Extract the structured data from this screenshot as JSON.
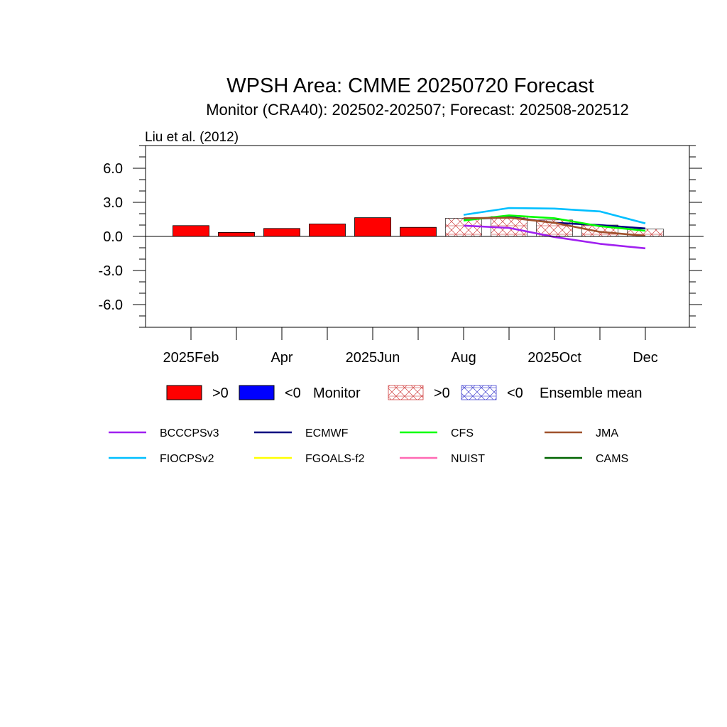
{
  "chart_data": {
    "type": "bar",
    "title": "WPSH Area: CMME 20250720 Forecast",
    "subtitle": "Monitor (CRA40): 202502-202507; Forecast: 202508-202512",
    "annotation": "Liu et al. (2012)",
    "ylim": [
      -8,
      8
    ],
    "y_ticks": [
      "6.0",
      "3.0",
      "0.0",
      "-3.0",
      "-6.0"
    ],
    "y_tick_values": [
      6,
      3,
      0,
      -3,
      -6
    ],
    "x_tick_labels": [
      "2025Feb",
      "Apr",
      "2025Jun",
      "Aug",
      "2025Oct",
      "Dec"
    ],
    "months": [
      "2025-02",
      "2025-03",
      "2025-04",
      "2025-05",
      "2025-06",
      "2025-07",
      "2025-08",
      "2025-09",
      "2025-10",
      "2025-11",
      "2025-12"
    ],
    "monitor": {
      "months": [
        "2025-02",
        "2025-03",
        "2025-04",
        "2025-05",
        "2025-06",
        "2025-07"
      ],
      "values": [
        0.95,
        0.35,
        0.7,
        1.1,
        1.65,
        0.8
      ],
      "pos_color": "#ff0000",
      "neg_color": "#0000ff"
    },
    "ensemble_mean": {
      "months": [
        "2025-08",
        "2025-09",
        "2025-10",
        "2025-11",
        "2025-12"
      ],
      "values": [
        1.6,
        1.75,
        1.45,
        1.0,
        0.65
      ],
      "pos_color": "#d04040",
      "neg_color": "#4040d0"
    },
    "series": [
      {
        "name": "BCCCPSv3",
        "color": "#a020f0",
        "months": [
          "2025-08",
          "2025-09",
          "2025-10",
          "2025-11",
          "2025-12"
        ],
        "values": [
          0.95,
          0.75,
          -0.05,
          -0.65,
          -1.05
        ]
      },
      {
        "name": "ECMWF",
        "color": "#000080",
        "months": [
          "2025-08",
          "2025-09",
          "2025-10",
          "2025-11",
          "2025-12"
        ],
        "values": [
          1.5,
          1.7,
          1.2,
          1.0,
          0.7
        ]
      },
      {
        "name": "CFS",
        "color": "#00ff00",
        "months": [
          "2025-08",
          "2025-09",
          "2025-10",
          "2025-11",
          "2025-12"
        ],
        "values": [
          1.4,
          1.85,
          1.6,
          0.9,
          0.5
        ]
      },
      {
        "name": "JMA",
        "color": "#a0522d",
        "months": [
          "2025-08",
          "2025-09",
          "2025-10",
          "2025-11",
          "2025-12"
        ],
        "values": [
          1.6,
          1.65,
          1.2,
          0.4,
          0.05
        ]
      },
      {
        "name": "FIOCPSv2",
        "color": "#00bfff",
        "months": [
          "2025-08",
          "2025-09",
          "2025-10",
          "2025-11",
          "2025-12"
        ],
        "values": [
          1.9,
          2.5,
          2.45,
          2.2,
          1.15
        ]
      },
      {
        "name": "FGOALS-f2",
        "color": "#ffff00",
        "months": [],
        "values": []
      },
      {
        "name": "NUIST",
        "color": "#ff69b4",
        "months": [],
        "values": []
      },
      {
        "name": "CAMS",
        "color": "#006400",
        "months": [],
        "values": []
      }
    ],
    "legend_top": {
      "pos_label": ">0",
      "neg_label": "<0",
      "monitor_label": "Monitor",
      "ensemble_label": "Ensemble mean"
    },
    "grid": false
  }
}
